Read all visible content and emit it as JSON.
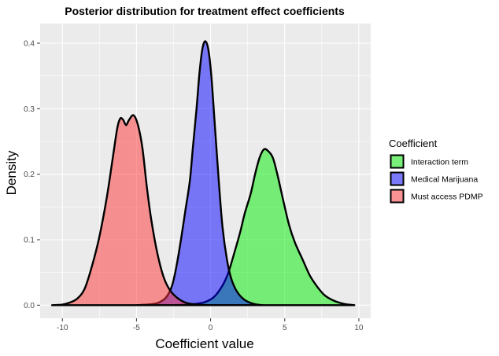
{
  "chart_data": {
    "type": "area",
    "subtype": "density",
    "title": "Posterior distribution for treatment effect coefficients",
    "xlabel": "Coefficient value",
    "ylabel": "Density",
    "xlim": [
      -11.5,
      10.8
    ],
    "ylim": [
      -0.02,
      0.43
    ],
    "x_ticks": [
      -10,
      -5,
      0,
      5,
      10
    ],
    "x_tick_labels": [
      "-10",
      "-5",
      "0",
      "5",
      "10"
    ],
    "y_ticks": [
      0.0,
      0.1,
      0.2,
      0.3,
      0.4
    ],
    "y_tick_labels": [
      "0.0",
      "0.1",
      "0.2",
      "0.3",
      "0.4"
    ],
    "grid": true,
    "legend": {
      "title": "Coefficient",
      "position": "right"
    },
    "series": [
      {
        "name": "Interaction term",
        "color": "#00ee00",
        "points": [
          [
            -2.5,
            0.0
          ],
          [
            -1.5,
            0.001
          ],
          [
            -0.5,
            0.004
          ],
          [
            0.2,
            0.012
          ],
          [
            0.8,
            0.03
          ],
          [
            1.2,
            0.05
          ],
          [
            1.6,
            0.08
          ],
          [
            2.0,
            0.112
          ],
          [
            2.3,
            0.14
          ],
          [
            2.7,
            0.17
          ],
          [
            3.0,
            0.2
          ],
          [
            3.3,
            0.225
          ],
          [
            3.6,
            0.238
          ],
          [
            3.9,
            0.235
          ],
          [
            4.2,
            0.225
          ],
          [
            4.5,
            0.2
          ],
          [
            4.9,
            0.16
          ],
          [
            5.3,
            0.122
          ],
          [
            5.7,
            0.095
          ],
          [
            6.2,
            0.07
          ],
          [
            6.7,
            0.045
          ],
          [
            7.2,
            0.028
          ],
          [
            7.7,
            0.015
          ],
          [
            8.3,
            0.007
          ],
          [
            9.0,
            0.002
          ],
          [
            9.7,
            0.0
          ]
        ]
      },
      {
        "name": "Medical Marijuana",
        "color": "#0000ff",
        "points": [
          [
            -5.0,
            0.0
          ],
          [
            -4.0,
            0.0015
          ],
          [
            -3.5,
            0.004
          ],
          [
            -3.0,
            0.012
          ],
          [
            -2.6,
            0.03
          ],
          [
            -2.3,
            0.06
          ],
          [
            -2.0,
            0.1
          ],
          [
            -1.7,
            0.145
          ],
          [
            -1.4,
            0.19
          ],
          [
            -1.2,
            0.24
          ],
          [
            -0.95,
            0.3
          ],
          [
            -0.75,
            0.355
          ],
          [
            -0.55,
            0.392
          ],
          [
            -0.35,
            0.403
          ],
          [
            -0.15,
            0.39
          ],
          [
            0.05,
            0.35
          ],
          [
            0.3,
            0.27
          ],
          [
            0.55,
            0.19
          ],
          [
            0.8,
            0.12
          ],
          [
            1.1,
            0.07
          ],
          [
            1.4,
            0.04
          ],
          [
            1.8,
            0.02
          ],
          [
            2.3,
            0.008
          ],
          [
            2.9,
            0.002
          ],
          [
            3.5,
            0.0
          ]
        ]
      },
      {
        "name": "Must access PDMP",
        "color": "#ff3333",
        "points": [
          [
            -10.7,
            0.0
          ],
          [
            -10.0,
            0.001
          ],
          [
            -9.5,
            0.004
          ],
          [
            -9.0,
            0.01
          ],
          [
            -8.5,
            0.025
          ],
          [
            -8.0,
            0.06
          ],
          [
            -7.5,
            0.105
          ],
          [
            -7.0,
            0.165
          ],
          [
            -6.6,
            0.225
          ],
          [
            -6.3,
            0.27
          ],
          [
            -6.1,
            0.285
          ],
          [
            -5.9,
            0.283
          ],
          [
            -5.7,
            0.275
          ],
          [
            -5.5,
            0.283
          ],
          [
            -5.2,
            0.29
          ],
          [
            -4.9,
            0.275
          ],
          [
            -4.6,
            0.24
          ],
          [
            -4.3,
            0.18
          ],
          [
            -4.0,
            0.13
          ],
          [
            -3.6,
            0.08
          ],
          [
            -3.2,
            0.045
          ],
          [
            -2.8,
            0.025
          ],
          [
            -2.3,
            0.012
          ],
          [
            -1.7,
            0.004
          ],
          [
            -1.0,
            0.001
          ],
          [
            0.0,
            0.0
          ]
        ]
      }
    ]
  }
}
